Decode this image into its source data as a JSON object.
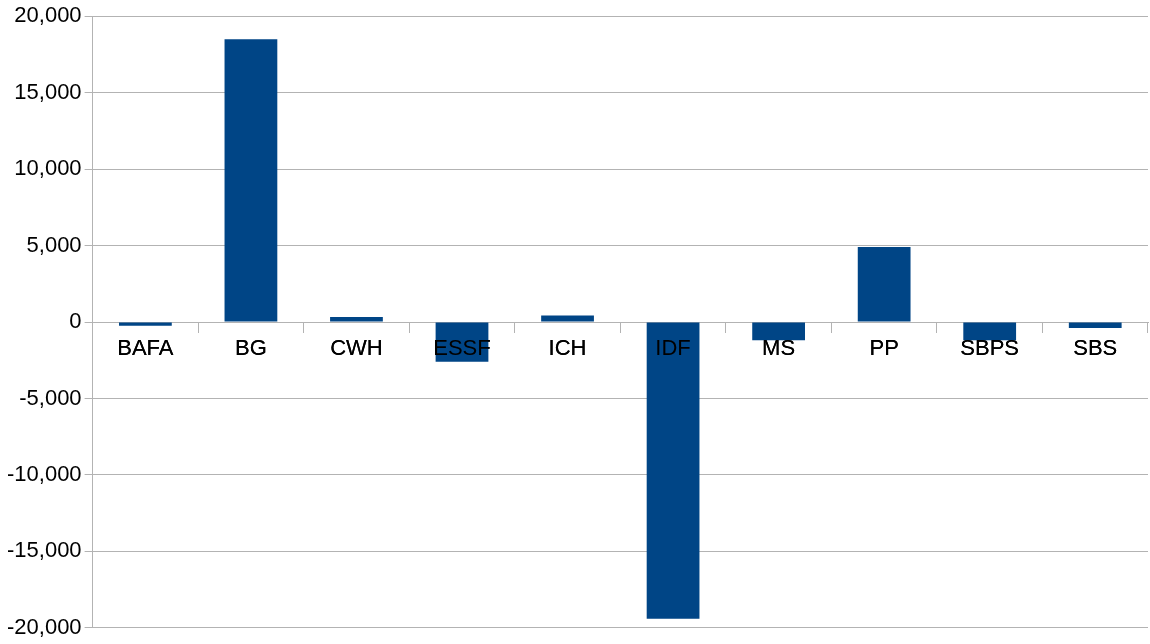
{
  "chart_data": {
    "type": "bar",
    "categories": [
      "BAFA",
      "BG",
      "CWH",
      "ESSF",
      "ICH",
      "IDF",
      "MS",
      "PP",
      "SBPS",
      "SBS"
    ],
    "values": [
      -250,
      18500,
      330,
      -2600,
      420,
      -19400,
      -1200,
      4900,
      -1200,
      -400
    ],
    "color": "#004586",
    "ylim": [
      -20000,
      20000
    ],
    "yticks": [
      {
        "value": -20000,
        "label": "-20,000"
      },
      {
        "value": -15000,
        "label": "-15,000"
      },
      {
        "value": -10000,
        "label": "-10,000"
      },
      {
        "value": -5000,
        "label": "-5,000"
      },
      0,
      {
        "value": 5000,
        "label": "5,000"
      },
      {
        "value": 10000,
        "label": "10,000"
      },
      {
        "value": 15000,
        "label": "15,000"
      },
      {
        "value": 20000,
        "label": "20,000"
      }
    ],
    "grid": "y",
    "legend": false
  }
}
